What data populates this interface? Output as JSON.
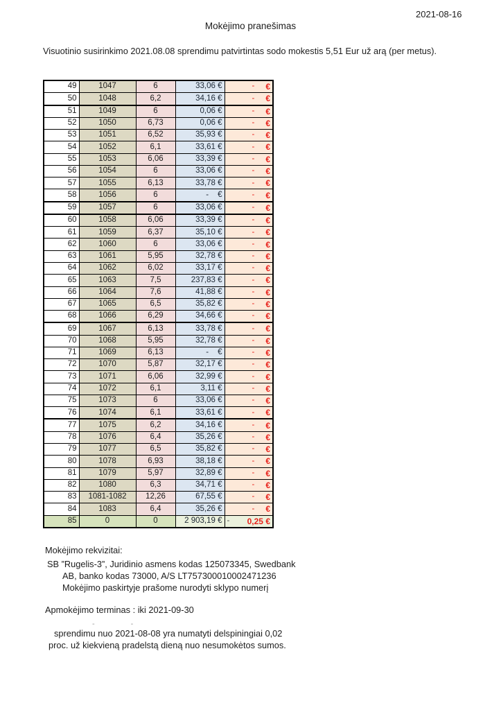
{
  "header": {
    "date": "2021-08-16",
    "title": "Mokėjimo pranešimas",
    "intro": "Visuotinio susirinkimo 2021.08.08 sprendimu patvirtintas sodo mokestis 5,51 Eur už arą (per metus)."
  },
  "table": {
    "currency_symbol": "€",
    "empty_value": "-",
    "rows": [
      {
        "no": "49",
        "plot": "1047",
        "area": "6",
        "amount": "33,06",
        "due": "-"
      },
      {
        "no": "50",
        "plot": "1048",
        "area": "6,2",
        "amount": "34,16",
        "due": "-"
      },
      {
        "no": "51",
        "plot": "1049",
        "area": "6",
        "amount": "0,06",
        "due": "-",
        "thick_top": true
      },
      {
        "no": "52",
        "plot": "1050",
        "area": "6,73",
        "amount": "0,06",
        "due": "-"
      },
      {
        "no": "53",
        "plot": "1051",
        "area": "6,52",
        "amount": "35,93",
        "due": "-"
      },
      {
        "no": "54",
        "plot": "1052",
        "area": "6,1",
        "amount": "33,61",
        "due": "-"
      },
      {
        "no": "55",
        "plot": "1053",
        "area": "6,06",
        "amount": "33,39",
        "due": "-"
      },
      {
        "no": "56",
        "plot": "1054",
        "area": "6",
        "amount": "33,06",
        "due": "-"
      },
      {
        "no": "57",
        "plot": "1055",
        "area": "6,13",
        "amount": "33,78",
        "due": "-"
      },
      {
        "no": "58",
        "plot": "1056",
        "area": "6",
        "amount": "-",
        "due": "-"
      },
      {
        "no": "59",
        "plot": "1057",
        "area": "6",
        "amount": "33,06",
        "due": "-",
        "thick_top": true
      },
      {
        "no": "60",
        "plot": "1058",
        "area": "6,06",
        "amount": "33,39",
        "due": "-",
        "thick_top": true
      },
      {
        "no": "61",
        "plot": "1059",
        "area": "6,37",
        "amount": "35,10",
        "due": "-"
      },
      {
        "no": "62",
        "plot": "1060",
        "area": "6",
        "amount": "33,06",
        "due": "-"
      },
      {
        "no": "63",
        "plot": "1061",
        "area": "5,95",
        "amount": "32,78",
        "due": "-"
      },
      {
        "no": "64",
        "plot": "1062",
        "area": "6,02",
        "amount": "33,17",
        "due": "-"
      },
      {
        "no": "65",
        "plot": "1063",
        "area": "7,5",
        "amount": "237,83",
        "due": "-"
      },
      {
        "no": "66",
        "plot": "1064",
        "area": "7,6",
        "amount": "41,88",
        "due": "-"
      },
      {
        "no": "67",
        "plot": "1065",
        "area": "6,5",
        "amount": "35,82",
        "due": "-"
      },
      {
        "no": "68",
        "plot": "1066",
        "area": "6,29",
        "amount": "34,66",
        "due": "-"
      },
      {
        "no": "69",
        "plot": "1067",
        "area": "6,13",
        "amount": "33,78",
        "due": "-",
        "thick_top": true
      },
      {
        "no": "70",
        "plot": "1068",
        "area": "5,95",
        "amount": "32,78",
        "due": "-"
      },
      {
        "no": "71",
        "plot": "1069",
        "area": "6,13",
        "amount": "-",
        "due": "-"
      },
      {
        "no": "72",
        "plot": "1070",
        "area": "5,87",
        "amount": "32,17",
        "due": "-"
      },
      {
        "no": "73",
        "plot": "1071",
        "area": "6,06",
        "amount": "32,99",
        "due": "-"
      },
      {
        "no": "74",
        "plot": "1072",
        "area": "6,1",
        "amount": "3,11",
        "due": "-"
      },
      {
        "no": "75",
        "plot": "1073",
        "area": "6",
        "amount": "33,06",
        "due": "-"
      },
      {
        "no": "76",
        "plot": "1074",
        "area": "6,1",
        "amount": "33,61",
        "due": "-"
      },
      {
        "no": "77",
        "plot": "1075",
        "area": "6,2",
        "amount": "34,16",
        "due": "-",
        "thick_top": true
      },
      {
        "no": "78",
        "plot": "1076",
        "area": "6,4",
        "amount": "35,26",
        "due": "-"
      },
      {
        "no": "79",
        "plot": "1077",
        "area": "6,5",
        "amount": "35,82",
        "due": "-"
      },
      {
        "no": "80",
        "plot": "1078",
        "area": "6,93",
        "amount": "38,18",
        "due": "-"
      },
      {
        "no": "81",
        "plot": "1079",
        "area": "5,97",
        "amount": "32,89",
        "due": "-"
      },
      {
        "no": "82",
        "plot": "1080",
        "area": "6,3",
        "amount": "34,71",
        "due": "-"
      },
      {
        "no": "83",
        "plot": "1081-1082",
        "area": "12,26",
        "amount": "67,55",
        "due": "-"
      },
      {
        "no": "84",
        "plot": "1083",
        "area": "6,4",
        "amount": "35,26",
        "due": "-"
      },
      {
        "no": "85",
        "plot": "0",
        "area": "0",
        "amount": "2 903,19",
        "due": "0,25",
        "total": true
      }
    ]
  },
  "footer": {
    "requisites_label": "Mokėjimo rekvizitai:",
    "requisites_line1": "SB ”Rugelis-3”, Juridinio asmens kodas 125073345, Swedbank",
    "requisites_line2": "AB, banko kodas 73000, A/S LT757300010002471236",
    "requisites_line3": "Mokėjimo paskirtyje prašome nurodyti sklypo numerį",
    "deadline": "Apmokėjimo  terminas : iki 2021-09-30",
    "faint_mark1": "-",
    "faint_mark2": "-",
    "penalty_line1": "sprendimu nuo 2021-08-08 yra numatyti delspiningiai 0,02",
    "penalty_line2": "proc. už kiekvieną pradelstą dieną nuo nesumokėtos sumos."
  },
  "colors": {
    "plot_col_bg": "#ddd9c3",
    "area_col_bg": "#f2dcdb",
    "amount_col_bg": "#dce6f1",
    "due_col_bg": "#fde9d9",
    "total_row_bg": "#d6e3bc",
    "total_row_light_bg": "#ebf1dd",
    "due_text_red": "#e8231d"
  }
}
